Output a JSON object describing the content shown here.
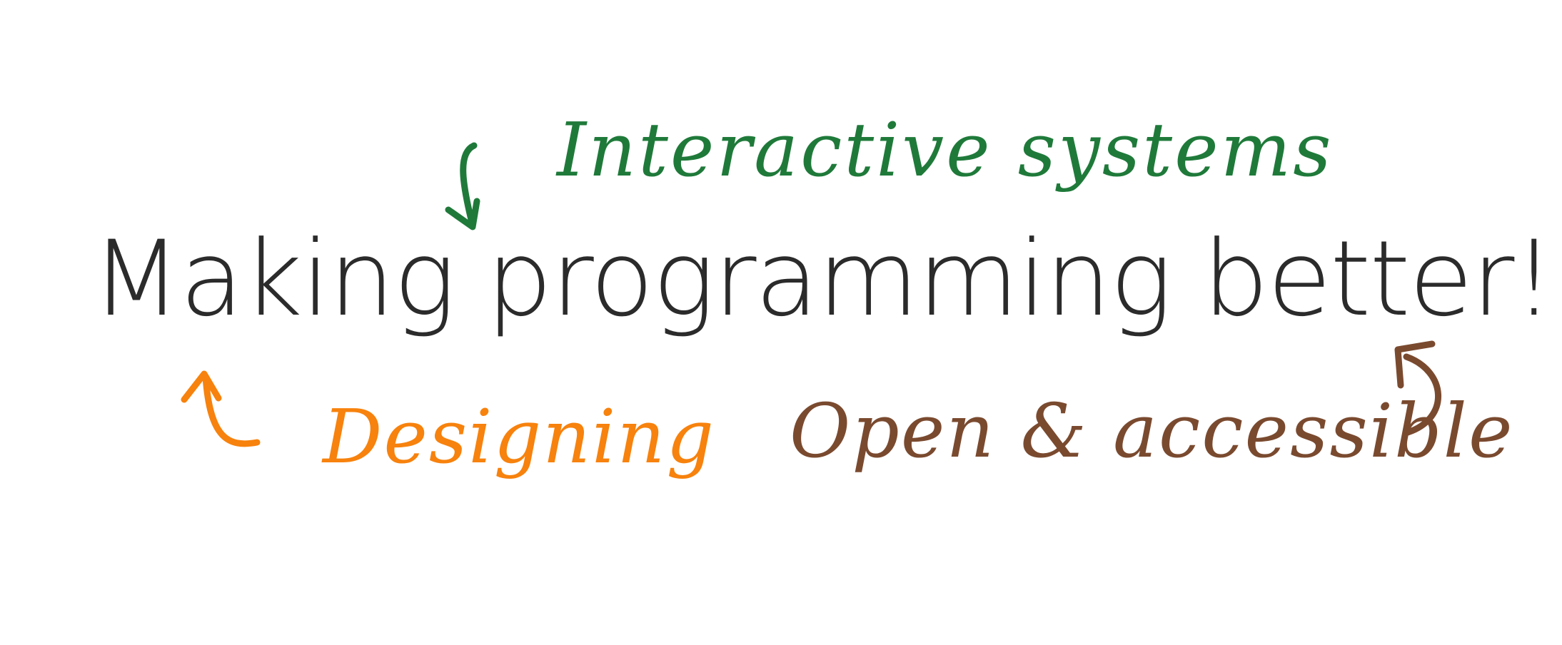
{
  "headline": {
    "text": "Making programming better!",
    "color": "#2b2b2b"
  },
  "annotations": [
    {
      "text": "Interactive systems",
      "color": "#1f7a3a",
      "arrow_icon": "curved-arrow-down-icon"
    },
    {
      "text": "Designing",
      "color": "#f7820d",
      "arrow_icon": "curved-arrow-up-icon"
    },
    {
      "text": "Open & accessible",
      "color": "#7a4a2f",
      "arrow_icon": "curved-arrow-up-left-icon"
    }
  ]
}
